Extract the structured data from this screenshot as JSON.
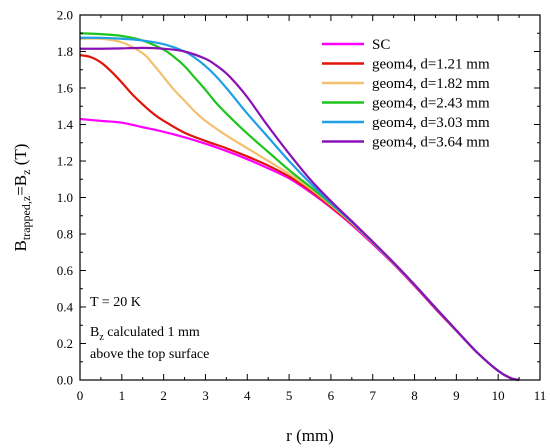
{
  "chart_data": {
    "type": "line",
    "xlabel": "r (mm)",
    "ylabel": {
      "base": "B",
      "sub": "trapped,z",
      "eq": "=B",
      "sub2": "z",
      "unit": " (T)"
    },
    "xlim": [
      0,
      11
    ],
    "ylim": [
      0,
      2.0
    ],
    "xticks": [
      "0",
      "1",
      "2",
      "3",
      "4",
      "5",
      "6",
      "7",
      "8",
      "9",
      "10",
      "11"
    ],
    "yticks": [
      "0.0",
      "0.2",
      "0.4",
      "0.6",
      "0.8",
      "1.0",
      "1.2",
      "1.4",
      "1.6",
      "1.8",
      "2.0"
    ],
    "grid": false,
    "legend_position": "top-right",
    "annotations": {
      "temperature": "T = 20 K",
      "bz_base": "B",
      "bz_sub": "z",
      "bz_rest": " calculated 1 mm",
      "line2": "above the top surface"
    },
    "series": [
      {
        "name": "SC",
        "color": "#ff00ff",
        "x": [
          0,
          0.5,
          1,
          1.5,
          2,
          2.5,
          3,
          3.5,
          4,
          4.5,
          5,
          5.5,
          6,
          6.5,
          7,
          7.5,
          8,
          8.5,
          9,
          9.5,
          10,
          10.3,
          10.5
        ],
        "y": [
          1.43,
          1.42,
          1.41,
          1.385,
          1.36,
          1.33,
          1.295,
          1.255,
          1.21,
          1.16,
          1.105,
          1.03,
          0.945,
          0.85,
          0.745,
          0.635,
          0.515,
          0.39,
          0.27,
          0.15,
          0.05,
          0.01,
          0.0
        ]
      },
      {
        "name": "geom4, d=1.21 mm",
        "color": "#e0140a",
        "x": [
          0,
          0.25,
          0.5,
          0.75,
          1,
          1.25,
          1.5,
          1.75,
          2,
          2.5,
          3,
          3.5,
          4,
          4.5,
          5,
          5.5,
          6,
          6.5,
          7,
          7.5,
          8,
          8.5,
          9,
          9.5,
          10,
          10.3,
          10.5
        ],
        "y": [
          1.78,
          1.77,
          1.74,
          1.69,
          1.63,
          1.565,
          1.51,
          1.46,
          1.42,
          1.355,
          1.31,
          1.27,
          1.225,
          1.175,
          1.115,
          1.04,
          0.95,
          0.855,
          0.75,
          0.638,
          0.518,
          0.392,
          0.27,
          0.15,
          0.05,
          0.01,
          0.0
        ]
      },
      {
        "name": "geom4, d=1.82 mm",
        "color": "#f2c06e",
        "x": [
          0,
          0.5,
          1,
          1.5,
          1.75,
          2,
          2.25,
          2.5,
          2.75,
          3,
          3.5,
          4,
          4.5,
          5,
          5.5,
          6,
          6.5,
          7,
          7.5,
          8,
          8.5,
          9,
          9.5,
          10,
          10.3,
          10.5
        ],
        "y": [
          1.87,
          1.87,
          1.85,
          1.79,
          1.73,
          1.66,
          1.59,
          1.53,
          1.47,
          1.42,
          1.34,
          1.27,
          1.2,
          1.13,
          1.05,
          0.958,
          0.86,
          0.752,
          0.64,
          0.52,
          0.395,
          0.272,
          0.15,
          0.05,
          0.01,
          0.0
        ]
      },
      {
        "name": "geom4, d=2.43 mm",
        "color": "#1ec41e",
        "x": [
          0,
          0.5,
          1,
          1.5,
          2,
          2.25,
          2.5,
          2.75,
          3,
          3.25,
          3.5,
          4,
          4.5,
          5,
          5.5,
          6,
          6.5,
          7,
          7.5,
          8,
          8.5,
          9,
          9.5,
          10,
          10.3,
          10.5
        ],
        "y": [
          1.9,
          1.895,
          1.885,
          1.86,
          1.81,
          1.77,
          1.72,
          1.655,
          1.59,
          1.52,
          1.46,
          1.35,
          1.25,
          1.15,
          1.06,
          0.965,
          0.865,
          0.755,
          0.642,
          0.522,
          0.396,
          0.272,
          0.15,
          0.05,
          0.01,
          0.0
        ]
      },
      {
        "name": "geom4, d=3.03 mm",
        "color": "#1e9fe6",
        "x": [
          0,
          0.5,
          1,
          1.5,
          2,
          2.5,
          2.75,
          3,
          3.25,
          3.5,
          3.75,
          4,
          4.5,
          5,
          5.5,
          6,
          6.5,
          7,
          7.5,
          8,
          8.5,
          9,
          9.5,
          10,
          10.3,
          10.5
        ],
        "y": [
          1.875,
          1.875,
          1.87,
          1.86,
          1.84,
          1.8,
          1.765,
          1.72,
          1.665,
          1.6,
          1.53,
          1.46,
          1.33,
          1.2,
          1.08,
          0.97,
          0.865,
          0.755,
          0.642,
          0.522,
          0.396,
          0.272,
          0.15,
          0.05,
          0.01,
          0.0
        ]
      },
      {
        "name": "geom4, d=3.64 mm",
        "color": "#8a10b8",
        "x": [
          0,
          0.5,
          1,
          1.5,
          2,
          2.5,
          3,
          3.25,
          3.5,
          3.75,
          4,
          4.25,
          4.5,
          5,
          5.5,
          6,
          6.5,
          7,
          7.5,
          8,
          8.5,
          9,
          9.5,
          10,
          10.3,
          10.5
        ],
        "y": [
          1.815,
          1.815,
          1.817,
          1.82,
          1.815,
          1.8,
          1.76,
          1.725,
          1.68,
          1.62,
          1.55,
          1.47,
          1.39,
          1.24,
          1.1,
          0.98,
          0.87,
          0.758,
          0.643,
          0.522,
          0.396,
          0.272,
          0.15,
          0.05,
          0.01,
          0.0
        ]
      }
    ]
  }
}
